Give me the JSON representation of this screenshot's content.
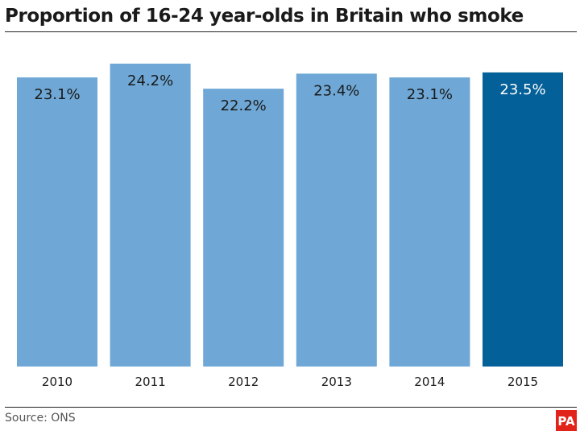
{
  "title": "Proportion of 16-24 year-olds in Britain who smoke",
  "source": "Source: ONS",
  "logo": {
    "text": "PA",
    "color": "#e2231a"
  },
  "colors": {
    "bar": "#6fa8d6",
    "highlight": "#046098",
    "bar_label_text": "#1a1a1a",
    "highlight_label_text": "#ffffff"
  },
  "chart_data": {
    "type": "bar",
    "title": "Proportion of 16-24 year-olds in Britain who smoke",
    "categories": [
      "2010",
      "2011",
      "2012",
      "2013",
      "2014",
      "2015"
    ],
    "values": [
      23.1,
      24.2,
      22.2,
      23.4,
      23.1,
      23.5
    ],
    "value_labels": [
      "23.1%",
      "24.2%",
      "22.2%",
      "23.4%",
      "23.1%",
      "23.5%"
    ],
    "highlight_category": "2015",
    "xlabel": "",
    "ylabel": "",
    "ylim": [
      0,
      24.2
    ],
    "grid": false,
    "legend": "none",
    "axis_lines": false
  }
}
